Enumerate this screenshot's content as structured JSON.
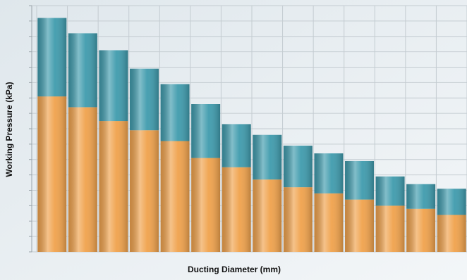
{
  "chart_data": {
    "type": "stacked_bar",
    "x_label": "Ducting Diameter (mm)",
    "y_label": "Working Pressure (kPa)",
    "categories": [
      null,
      null,
      null,
      null,
      null,
      null,
      null,
      null,
      null,
      null,
      null,
      null,
      null,
      null
    ],
    "series": [
      {
        "color": "#f0a24c",
        "values": [
          10.1,
          9.4,
          8.5,
          7.9,
          7.2,
          6.1,
          5.5,
          4.7,
          4.2,
          3.8,
          3.4,
          3.0,
          2.8,
          2.4
        ]
      },
      {
        "color": "#3f9bad",
        "values": [
          5.1,
          4.8,
          4.6,
          4.0,
          3.7,
          3.5,
          2.8,
          2.9,
          2.7,
          2.6,
          2.5,
          1.9,
          1.6,
          1.7
        ]
      }
    ],
    "ylim": [
      0,
      16
    ],
    "yticks": [
      0,
      1,
      2,
      3,
      4,
      5,
      6,
      7,
      8,
      9,
      10,
      11,
      12,
      13,
      14,
      15,
      16
    ],
    "grid": true
  }
}
